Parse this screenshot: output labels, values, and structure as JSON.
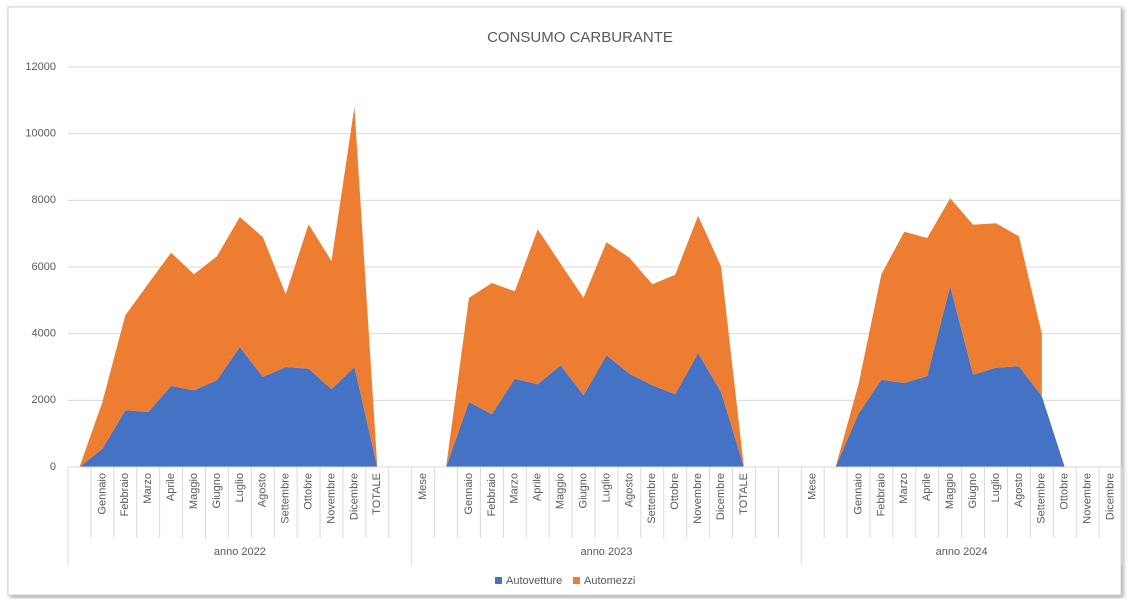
{
  "chart_data": {
    "type": "area",
    "stacked": true,
    "title": "CONSUMO CARBURANTE",
    "groups": [
      {
        "name": "anno 2022",
        "categories": [
          null,
          "Gennaio",
          "Febbraio",
          "Marzo",
          "Aprile",
          "Maggio",
          "Giugno",
          "Luglio",
          "Agosto",
          "Settembre",
          "Ottobre",
          "Novembre",
          "Dicembre",
          "TOTALE",
          null
        ]
      },
      {
        "name": "anno 2023",
        "categories": [
          "Mese",
          null,
          "Gennaio",
          "Febbraio",
          "Marzo",
          "Aprile",
          "Maggio",
          "Giugno",
          "Luglio",
          "Agosto",
          "Settembre",
          "Ottobre",
          "Novembre",
          "Dicembre",
          "TOTALE",
          null,
          null
        ]
      },
      {
        "name": "anno 2024",
        "categories": [
          "Mese",
          null,
          "Gennaio",
          "Febbraio",
          "Marzo",
          "Aprile",
          "Maggio",
          "Giugno",
          "Luglio",
          "Agosto",
          "Settembre",
          "Ottobre",
          "Novembre",
          "Dicembre"
        ]
      }
    ],
    "series": [
      {
        "name": "Autovetture",
        "color": "#4472c4",
        "values": [
          0,
          550,
          1700,
          1650,
          2430,
          2300,
          2600,
          3600,
          2700,
          3000,
          2950,
          2330,
          3000,
          0,
          null,
          null,
          0,
          1950,
          1580,
          2650,
          2480,
          3050,
          2150,
          3350,
          2800,
          2450,
          2180,
          3420,
          2250,
          0,
          null,
          null,
          null,
          0,
          1600,
          2620,
          2520,
          2730,
          5420,
          2770,
          2980,
          3020,
          2120,
          0,
          null,
          null
        ]
      },
      {
        "name": "Automezzi",
        "color": "#ed7d31",
        "values": [
          0,
          1400,
          2850,
          3850,
          4000,
          3480,
          3720,
          3900,
          4200,
          2180,
          4330,
          3850,
          7800,
          0,
          null,
          null,
          0,
          3130,
          3940,
          2620,
          4650,
          3050,
          2930,
          3390,
          3480,
          3030,
          3590,
          4120,
          3770,
          0,
          null,
          null,
          null,
          0,
          880,
          3160,
          4540,
          4140,
          2640,
          4500,
          4330,
          3900,
          1880,
          null,
          null,
          null
        ]
      }
    ],
    "ylim": [
      0,
      12000
    ],
    "yticks": [
      0,
      2000,
      4000,
      6000,
      8000,
      10000,
      12000
    ],
    "grid": true,
    "legend": "bottom"
  }
}
